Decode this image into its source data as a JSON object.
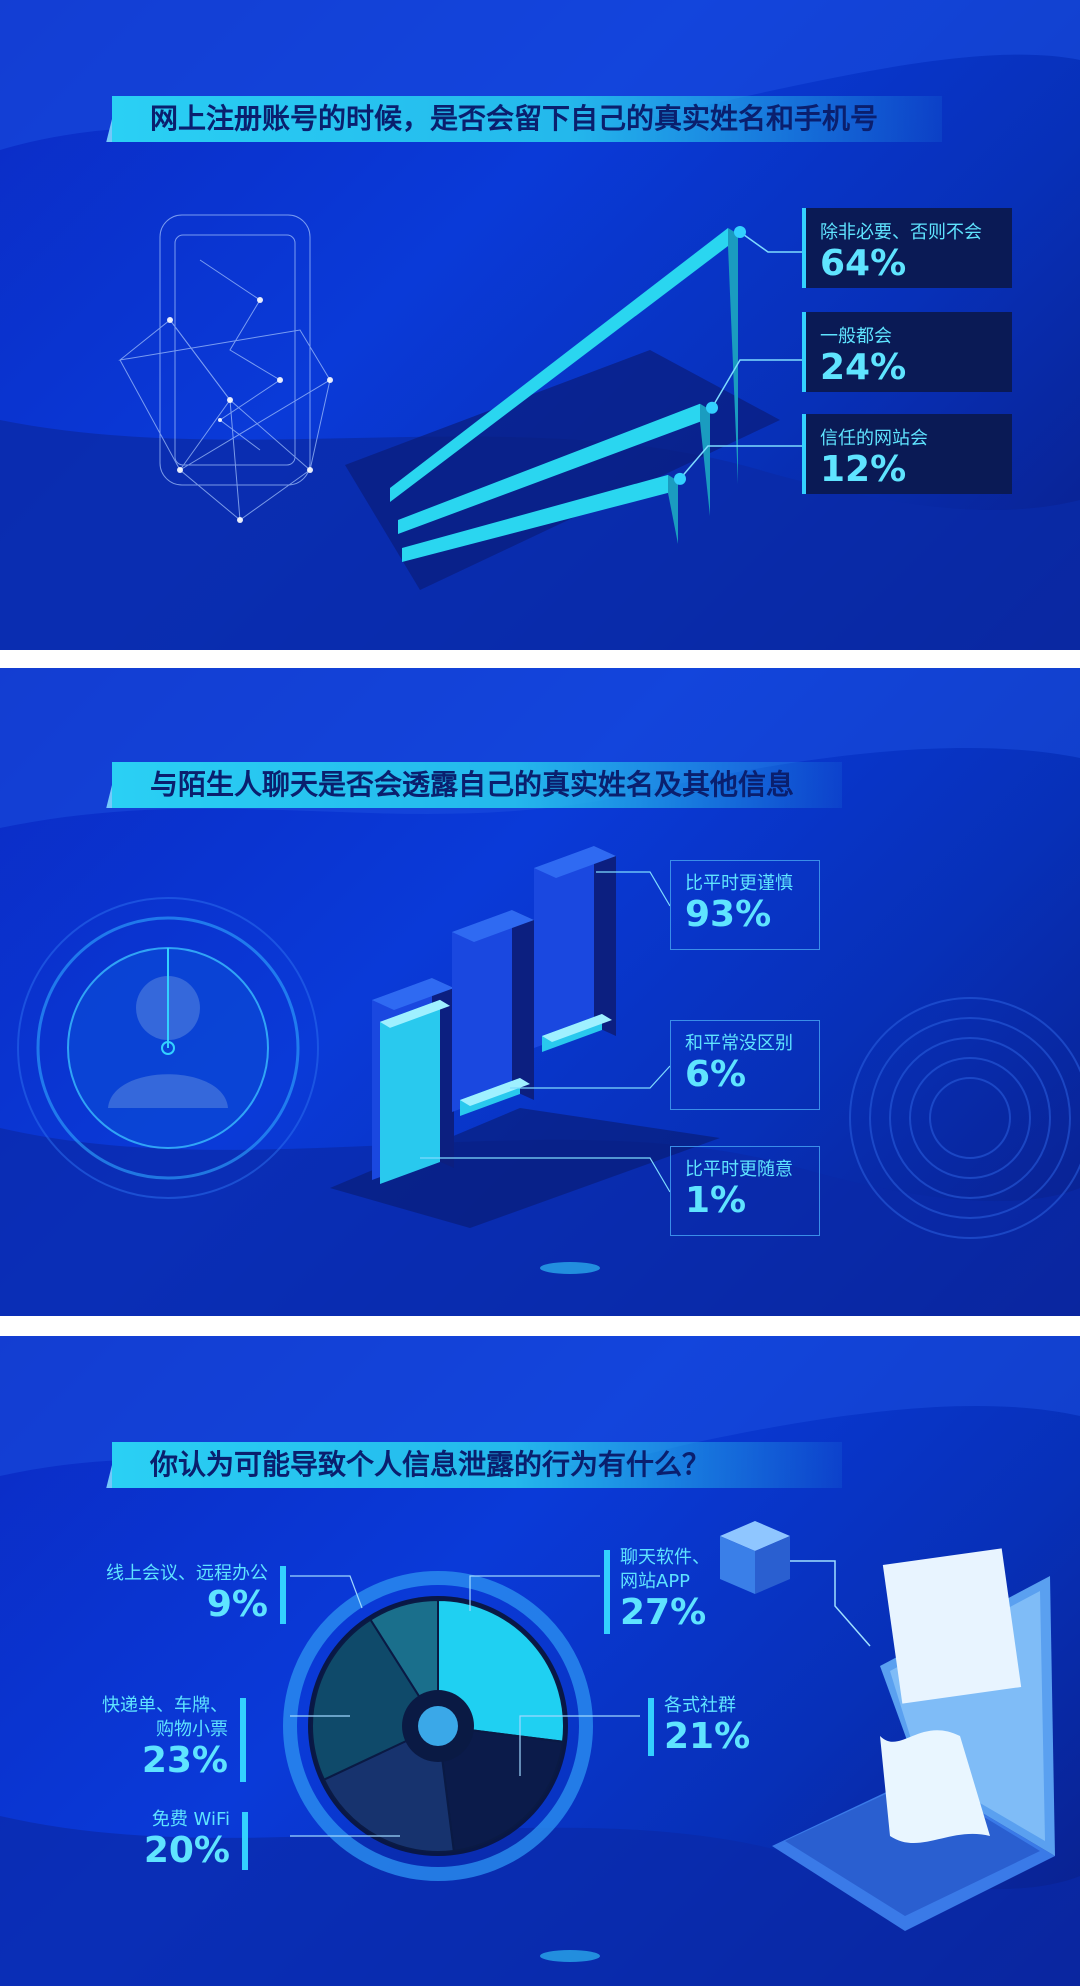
{
  "colors": {
    "accent": "#33d1ff",
    "text": "#5fe4ff",
    "title_bg": "#2ad0f4",
    "panel_bg": "#0a3ad8"
  },
  "chart_data": [
    {
      "type": "bar",
      "title": "网上注册账号的时候，是否会留下自己的真实姓名和手机号",
      "categories": [
        "除非必要、否则不会",
        "一般都会",
        "信任的网站会"
      ],
      "values": [
        64,
        24,
        12
      ],
      "labels": [
        "64%",
        "24%",
        "12%"
      ],
      "unit": "%"
    },
    {
      "type": "bar",
      "title": "与陌生人聊天是否会透露自己的真实姓名及其他信息",
      "categories": [
        "比平时更谨慎",
        "和平常没区别",
        "比平时更随意"
      ],
      "values": [
        93,
        6,
        1
      ],
      "labels": [
        "93%",
        "6%",
        "1%"
      ],
      "unit": "%"
    },
    {
      "type": "pie",
      "title": "你认为可能导致个人信息泄露的行为有什么？",
      "categories": [
        "聊天软件、网站APP",
        "各式社群",
        "免费 WiFi",
        "快递单、车牌、购物小票",
        "线上会议、远程办公"
      ],
      "label_lines": [
        [
          "聊天软件、",
          "网站APP"
        ],
        [
          "各式社群"
        ],
        [
          "免费 WiFi"
        ],
        [
          "快递单、车牌、",
          "购物小票"
        ],
        [
          "线上会议、远程办公"
        ]
      ],
      "values": [
        27,
        21,
        20,
        23,
        9
      ],
      "labels": [
        "27%",
        "21%",
        "20%",
        "23%",
        "9%"
      ],
      "colors": [
        "#1fd0f2",
        "#0b1b4a",
        "#17336e",
        "#0f4a6a",
        "#1a6f8c"
      ],
      "unit": "%"
    }
  ]
}
